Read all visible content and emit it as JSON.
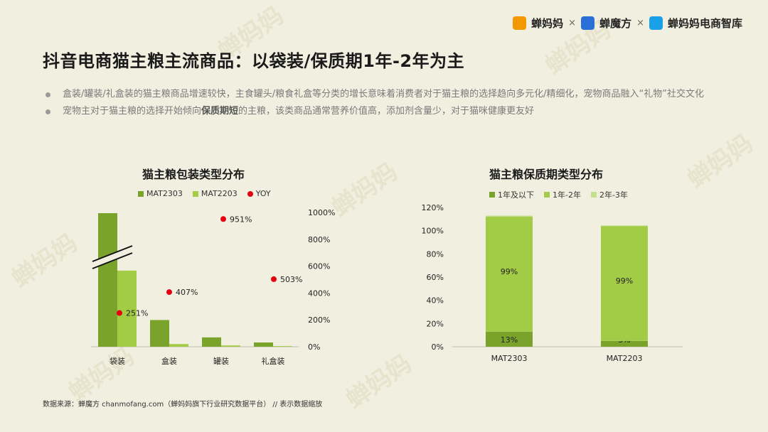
{
  "header": {
    "brand1": "蝉妈妈",
    "sep1": "×",
    "brand2": "蝉魔方",
    "sep2": "×",
    "brand3": "蝉妈妈电商智库"
  },
  "watermark": "蝉妈妈",
  "title": "抖音电商猫主粮主流商品：以袋装/保质期1年-2年为主",
  "bullets": [
    "盒装/罐装/礼盒装的猫主粮商品增速较快，主食罐头/粮食礼盒等分类的增长意味着消费者对于猫主粮的选择趋向多元化/精细化，宠物商品融入“礼物”社交文化",
    {
      "pre": "宠物主对于猫主粮的选择开始倾向",
      "bold": "保质期短",
      "post": "的主粮，该类商品通常营养价值高，添加剂含量少，对于猫咪健康更友好"
    }
  ],
  "colors": {
    "dark_green": "#7aa32c",
    "light_green": "#a3cc46",
    "pale_green": "#c5e08a",
    "red": "#e60012"
  },
  "chart_data": [
    {
      "type": "bar",
      "title": "猫主粮包装类型分布",
      "categories": [
        "袋装",
        "盒装",
        "罐装",
        "礼盒装"
      ],
      "series": [
        {
          "name": "MAT2303",
          "values": [
            100,
            20,
            7,
            3.2
          ]
        },
        {
          "name": "MAT2203",
          "values": [
            57,
            2,
            1,
            0.5
          ]
        },
        {
          "name": "YOY",
          "type": "scatter",
          "axis": "right",
          "values": [
            251,
            407,
            951,
            503
          ],
          "labels": [
            "251%",
            "407%",
            "951%",
            "503%"
          ]
        }
      ],
      "axis_break_on": "袋装",
      "y2": {
        "ticks": [
          "0%",
          "200%",
          "400%",
          "600%",
          "800%",
          "1000%"
        ],
        "lim": [
          0,
          1000
        ]
      },
      "legend": "top"
    },
    {
      "type": "bar",
      "stacked": true,
      "title": "猫主粮保质期类型分布",
      "categories": [
        "MAT2303",
        "MAT2203"
      ],
      "series": [
        {
          "name": "1年及以下",
          "values": [
            13,
            5
          ],
          "labels": [
            "13%",
            "5%"
          ]
        },
        {
          "name": "1年-2年",
          "values": [
            99,
            99
          ],
          "labels": [
            "99%",
            "99%"
          ]
        },
        {
          "name": "2年-3年",
          "values": [
            1,
            0.5
          ],
          "labels": [
            "",
            ""
          ]
        }
      ],
      "y": {
        "ticks": [
          "0%",
          "20%",
          "40%",
          "60%",
          "80%",
          "100%",
          "120%"
        ],
        "lim": [
          0,
          120
        ]
      },
      "legend": "top"
    }
  ],
  "source": "数据来源：蝉魔方 chanmofang.com（蝉妈妈旗下行业研究数据平台） // 表示数据缩放"
}
